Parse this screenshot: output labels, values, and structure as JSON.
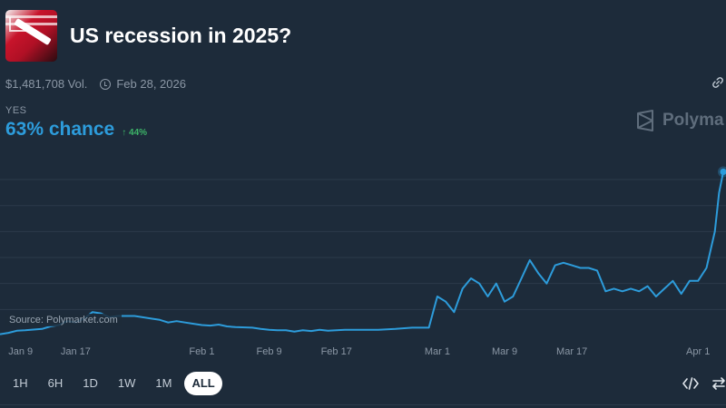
{
  "market": {
    "title": "US recession in 2025?",
    "volume": "$1,481,708 Vol.",
    "end_date": "Feb 28, 2026",
    "outcome_label": "YES",
    "chance_text": "63% chance",
    "change_text": "↑ 44%",
    "brand": "Polyma",
    "source": "Source: Polymarket.com"
  },
  "icons": {
    "clock": "clock-icon",
    "link": "link-icon",
    "brand_logo": "polymarket-logo-icon",
    "embed": "code-embed-icon",
    "swap": "swap-arrows-icon"
  },
  "colors": {
    "background": "#1d2b3a",
    "line": "#2d9cdb",
    "grid": "#2c3b4b",
    "positive": "#3db468"
  },
  "controls": {
    "ranges": [
      "1H",
      "6H",
      "1D",
      "1W",
      "1M",
      "ALL"
    ],
    "active_range": "ALL"
  },
  "chart_data": {
    "type": "line",
    "title": "",
    "xlabel": "",
    "ylabel": "",
    "x_ticks": [
      "Jan 9",
      "Jan 17",
      "Feb 1",
      "Feb 9",
      "Feb 17",
      "Mar 1",
      "Mar 9",
      "Mar 17",
      "Apr 1"
    ],
    "x_range": [
      "2025-01-08",
      "2025-04-04"
    ],
    "ylim": [
      0,
      67
    ],
    "grid": true,
    "series": [
      {
        "name": "",
        "points": [
          [
            "2025-01-08",
            0.5
          ],
          [
            "2025-01-09",
            1.0
          ],
          [
            "2025-01-10",
            1.8
          ],
          [
            "2025-01-11",
            2.0
          ],
          [
            "2025-01-13",
            2.5
          ],
          [
            "2025-01-14",
            3.5
          ],
          [
            "2025-01-15",
            4.0
          ],
          [
            "2025-01-16",
            5.5
          ],
          [
            "2025-01-17",
            5.0
          ],
          [
            "2025-01-18",
            6.5
          ],
          [
            "2025-01-19",
            9.0
          ],
          [
            "2025-01-20",
            8.5
          ],
          [
            "2025-01-21",
            7.0
          ],
          [
            "2025-01-22",
            7.5
          ],
          [
            "2025-01-24",
            7.5
          ],
          [
            "2025-01-26",
            6.5
          ],
          [
            "2025-01-27",
            6.0
          ],
          [
            "2025-01-28",
            5.0
          ],
          [
            "2025-01-29",
            5.5
          ],
          [
            "2025-01-30",
            5.0
          ],
          [
            "2025-01-31",
            4.5
          ],
          [
            "2025-02-01",
            4.0
          ],
          [
            "2025-02-02",
            3.8
          ],
          [
            "2025-02-03",
            4.2
          ],
          [
            "2025-02-04",
            3.5
          ],
          [
            "2025-02-05",
            3.2
          ],
          [
            "2025-02-07",
            3.0
          ],
          [
            "2025-02-08",
            2.5
          ],
          [
            "2025-02-09",
            2.2
          ],
          [
            "2025-02-10",
            2.0
          ],
          [
            "2025-02-11",
            2.0
          ],
          [
            "2025-02-12",
            1.5
          ],
          [
            "2025-02-13",
            2.0
          ],
          [
            "2025-02-14",
            1.7
          ],
          [
            "2025-02-15",
            2.2
          ],
          [
            "2025-02-16",
            1.8
          ],
          [
            "2025-02-17",
            2.0
          ],
          [
            "2025-02-18",
            2.2
          ],
          [
            "2025-02-20",
            2.2
          ],
          [
            "2025-02-22",
            2.2
          ],
          [
            "2025-02-24",
            2.5
          ],
          [
            "2025-02-26",
            3.0
          ],
          [
            "2025-02-27",
            3.0
          ],
          [
            "2025-02-28",
            3.0
          ],
          [
            "2025-03-01",
            15.0
          ],
          [
            "2025-03-02",
            13.0
          ],
          [
            "2025-03-03",
            9.0
          ],
          [
            "2025-03-04",
            18.0
          ],
          [
            "2025-03-05",
            22.0
          ],
          [
            "2025-03-06",
            20.0
          ],
          [
            "2025-03-07",
            15.0
          ],
          [
            "2025-03-08",
            20.0
          ],
          [
            "2025-03-09",
            13.0
          ],
          [
            "2025-03-10",
            15.0
          ],
          [
            "2025-03-11",
            22.0
          ],
          [
            "2025-03-12",
            29.0
          ],
          [
            "2025-03-13",
            24.0
          ],
          [
            "2025-03-14",
            20.0
          ],
          [
            "2025-03-15",
            27.0
          ],
          [
            "2025-03-16",
            28.0
          ],
          [
            "2025-03-17",
            27.0
          ],
          [
            "2025-03-18",
            26.0
          ],
          [
            "2025-03-19",
            26.0
          ],
          [
            "2025-03-20",
            25.0
          ],
          [
            "2025-03-21",
            17.0
          ],
          [
            "2025-03-22",
            18.0
          ],
          [
            "2025-03-23",
            17.0
          ],
          [
            "2025-03-24",
            18.0
          ],
          [
            "2025-03-25",
            17.0
          ],
          [
            "2025-03-26",
            19.0
          ],
          [
            "2025-03-27",
            15.0
          ],
          [
            "2025-03-28",
            18.0
          ],
          [
            "2025-03-29",
            21.0
          ],
          [
            "2025-03-30",
            16.0
          ],
          [
            "2025-03-31",
            21.0
          ],
          [
            "2025-04-01",
            21.0
          ],
          [
            "2025-04-02",
            26.0
          ],
          [
            "2025-04-03",
            40.0
          ],
          [
            "2025-04-03T12:00",
            55.0
          ],
          [
            "2025-04-04",
            63.0
          ]
        ]
      }
    ]
  }
}
